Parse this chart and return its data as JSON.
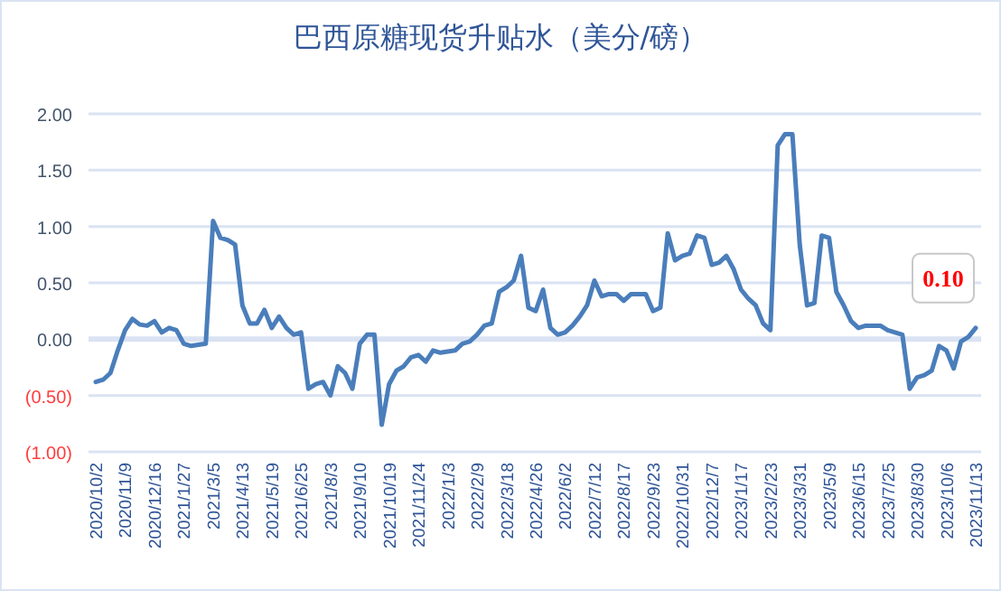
{
  "chart_data": {
    "type": "line",
    "title": "巴西原糖现货升贴水（美分/磅）",
    "categories": [
      "2020/10/2",
      null,
      null,
      null,
      "2020/11/9",
      null,
      null,
      null,
      "2020/12/16",
      null,
      null,
      null,
      "2021/1/27",
      null,
      null,
      null,
      "2021/3/5",
      null,
      null,
      null,
      "2021/4/13",
      null,
      null,
      null,
      "2021/5/19",
      null,
      null,
      null,
      "2021/6/25",
      null,
      null,
      null,
      "2021/8/3",
      null,
      null,
      null,
      "2021/9/10",
      null,
      null,
      null,
      "2021/10/19",
      null,
      null,
      null,
      "2021/11/24",
      null,
      null,
      null,
      "2022/1/3",
      null,
      null,
      null,
      "2022/2/9",
      null,
      null,
      null,
      "2022/3/18",
      null,
      null,
      null,
      "2022/4/26",
      null,
      null,
      null,
      "2022/6/2",
      null,
      null,
      null,
      "2022/7/12",
      null,
      null,
      null,
      "2022/8/17",
      null,
      null,
      null,
      "2022/9/23",
      null,
      null,
      null,
      "2022/10/31",
      null,
      null,
      null,
      "2022/12/7",
      null,
      null,
      null,
      "2023/1/17",
      null,
      null,
      null,
      "2023/2/23",
      null,
      null,
      null,
      "2023/3/31",
      null,
      null,
      null,
      "2023/5/9",
      null,
      null,
      null,
      "2023/6/15",
      null,
      null,
      null,
      "2023/7/25",
      null,
      null,
      null,
      "2023/8/30",
      null,
      null,
      null,
      "2023/10/6",
      null,
      null,
      null,
      "2023/11/13"
    ],
    "series": [
      {
        "color": "#4a7ebb",
        "values": [
          -0.38,
          -0.36,
          -0.3,
          -0.1,
          0.08,
          0.18,
          0.13,
          0.12,
          0.16,
          0.06,
          0.1,
          0.08,
          -0.04,
          -0.06,
          -0.05,
          -0.04,
          1.05,
          0.9,
          0.88,
          0.84,
          0.3,
          0.14,
          0.14,
          0.26,
          0.1,
          0.2,
          0.1,
          0.04,
          0.06,
          -0.44,
          -0.4,
          -0.38,
          -0.5,
          -0.24,
          -0.3,
          -0.44,
          -0.04,
          0.04,
          0.04,
          -0.76,
          -0.4,
          -0.28,
          -0.24,
          -0.16,
          -0.14,
          -0.2,
          -0.1,
          -0.12,
          -0.11,
          -0.1,
          -0.04,
          -0.02,
          0.04,
          0.12,
          0.14,
          0.42,
          0.46,
          0.52,
          0.74,
          0.28,
          0.25,
          0.44,
          0.1,
          0.04,
          0.06,
          0.12,
          0.2,
          0.3,
          0.52,
          0.38,
          0.4,
          0.4,
          0.34,
          0.4,
          0.4,
          0.4,
          0.25,
          0.28,
          0.94,
          0.7,
          0.74,
          0.76,
          0.92,
          0.9,
          0.66,
          0.68,
          0.74,
          0.62,
          0.44,
          0.36,
          0.3,
          0.14,
          0.08,
          1.72,
          1.82,
          1.82,
          0.84,
          0.3,
          0.32,
          0.92,
          0.9,
          0.42,
          0.3,
          0.16,
          0.1,
          0.12,
          0.12,
          0.12,
          0.08,
          0.06,
          0.04,
          -0.44,
          -0.34,
          -0.32,
          -0.28,
          -0.06,
          -0.1,
          -0.26,
          -0.02,
          0.02,
          0.1
        ],
        "value_labels": [
          null,
          null,
          null,
          null,
          null,
          null,
          null,
          null,
          null,
          null,
          null,
          null,
          null,
          null,
          null,
          null,
          null,
          null,
          null,
          null,
          null,
          null,
          null,
          null,
          null,
          null,
          null,
          null,
          null,
          null,
          null,
          null,
          null,
          null,
          null,
          null,
          null,
          null,
          null,
          null,
          null,
          null,
          null,
          null,
          null,
          null,
          null,
          null,
          null,
          null,
          null,
          null,
          null,
          null,
          null,
          null,
          null,
          null,
          null,
          null,
          null,
          null,
          null,
          null,
          null,
          null,
          null,
          null,
          null,
          null,
          null,
          null,
          null,
          null,
          null,
          null,
          null,
          null,
          null,
          null,
          null,
          null,
          null,
          null,
          null,
          null,
          null,
          null,
          null,
          null,
          null,
          null,
          null,
          null,
          null,
          null,
          null,
          null,
          null,
          null,
          null,
          null,
          null,
          null,
          null,
          null,
          null,
          null,
          null,
          null,
          null,
          null,
          null,
          null,
          null,
          null,
          null,
          null,
          null,
          null,
          "0.10"
        ]
      }
    ],
    "ylim": [
      -1,
      2
    ],
    "yticks": [
      {
        "value": 2,
        "label": "2.00"
      },
      {
        "value": 1.5,
        "label": "1.50"
      },
      {
        "value": 1,
        "label": "1.00"
      },
      {
        "value": 0.5,
        "label": "0.50"
      },
      {
        "value": 0,
        "label": "0.00"
      },
      {
        "value": -0.5,
        "label": "(0.50)"
      },
      {
        "value": -1,
        "label": "(1.00)"
      }
    ],
    "grid": "y",
    "marker": "none",
    "line_style": "solid"
  }
}
